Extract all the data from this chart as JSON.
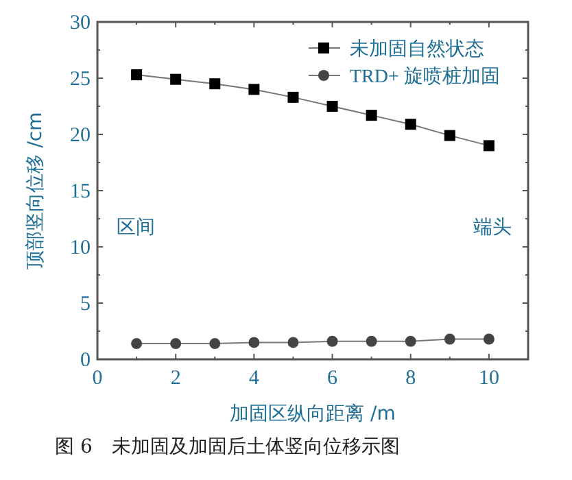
{
  "chart_data": {
    "type": "line",
    "xlabel": "加固区纵向距离 /m",
    "ylabel": "顶部竖向位移 /cm",
    "x": [
      1,
      2,
      3,
      4,
      5,
      6,
      7,
      8,
      9,
      10
    ],
    "series": [
      {
        "name": "未加固自然状态",
        "color": "#000000",
        "marker": "square",
        "values": [
          25.3,
          24.9,
          24.5,
          24.0,
          23.3,
          22.5,
          21.7,
          20.9,
          19.9,
          19.0
        ]
      },
      {
        "name": "TRD+ 旋喷桩加固",
        "color": "#444444",
        "marker": "circle",
        "values": [
          1.4,
          1.4,
          1.4,
          1.5,
          1.5,
          1.6,
          1.6,
          1.6,
          1.8,
          1.8
        ]
      }
    ],
    "xlim": [
      0,
      11
    ],
    "ylim": [
      0,
      30
    ],
    "xticks": [
      0,
      2,
      4,
      6,
      8,
      10
    ],
    "yticks": [
      0,
      5,
      10,
      15,
      20,
      25,
      30
    ],
    "legend": "top right",
    "annotations": [
      {
        "text": "区间"
      },
      {
        "text": "端头"
      },
      {
        "text": "图 6　未加固及加固后土体竖向位移示图"
      }
    ]
  }
}
